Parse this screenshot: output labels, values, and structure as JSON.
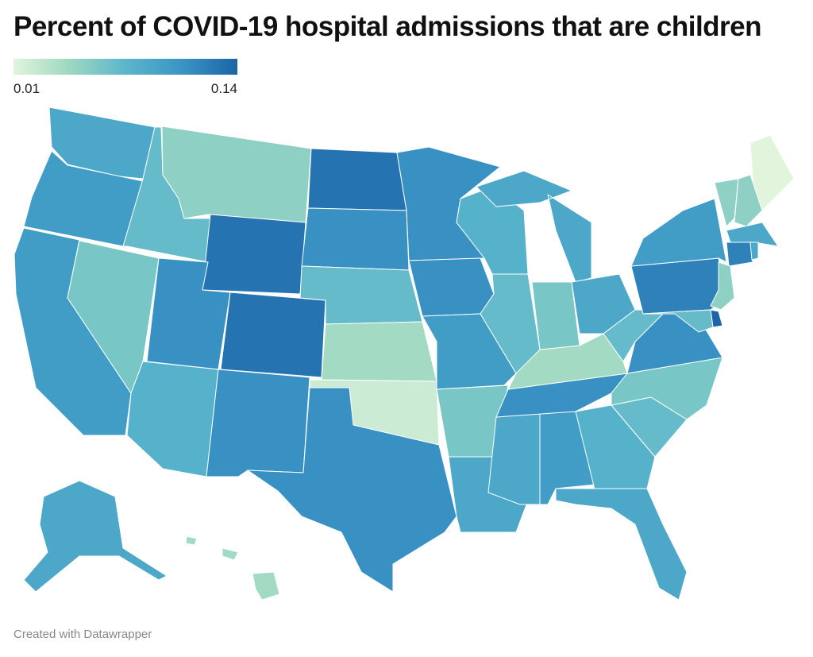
{
  "header": {
    "title": "Percent of COVID-19 hospital admissions that are children"
  },
  "legend": {
    "min_label": "0.01",
    "max_label": "0.14",
    "min_value": 0.01,
    "max_value": 0.14,
    "scale_colors": [
      "#e1f4dc",
      "#9dd8c2",
      "#5bb6cb",
      "#3a95c4",
      "#1d64a8"
    ]
  },
  "map_data": {
    "variable": "Percent of COVID-19 hospital admissions that are children",
    "states": [
      {
        "abbr": "WA",
        "value": 0.09
      },
      {
        "abbr": "OR",
        "value": 0.1
      },
      {
        "abbr": "CA",
        "value": 0.1
      },
      {
        "abbr": "NV",
        "value": 0.06
      },
      {
        "abbr": "ID",
        "value": 0.07
      },
      {
        "abbr": "MT",
        "value": 0.05
      },
      {
        "abbr": "WY",
        "value": 0.13
      },
      {
        "abbr": "UT",
        "value": 0.11
      },
      {
        "abbr": "AZ",
        "value": 0.08
      },
      {
        "abbr": "CO",
        "value": 0.13
      },
      {
        "abbr": "NM",
        "value": 0.11
      },
      {
        "abbr": "ND",
        "value": 0.13
      },
      {
        "abbr": "SD",
        "value": 0.11
      },
      {
        "abbr": "NE",
        "value": 0.07
      },
      {
        "abbr": "KS",
        "value": 0.04
      },
      {
        "abbr": "OK",
        "value": 0.02
      },
      {
        "abbr": "TX",
        "value": 0.11
      },
      {
        "abbr": "MN",
        "value": 0.11
      },
      {
        "abbr": "IA",
        "value": 0.11
      },
      {
        "abbr": "MO",
        "value": 0.1
      },
      {
        "abbr": "AR",
        "value": 0.06
      },
      {
        "abbr": "LA",
        "value": 0.09
      },
      {
        "abbr": "WI",
        "value": 0.08
      },
      {
        "abbr": "IL",
        "value": 0.07
      },
      {
        "abbr": "MS",
        "value": 0.09
      },
      {
        "abbr": "AL",
        "value": 0.1
      },
      {
        "abbr": "TN",
        "value": 0.11
      },
      {
        "abbr": "KY",
        "value": 0.04
      },
      {
        "abbr": "IN",
        "value": 0.06
      },
      {
        "abbr": "MI",
        "value": 0.09
      },
      {
        "abbr": "OH",
        "value": 0.09
      },
      {
        "abbr": "GA",
        "value": 0.08
      },
      {
        "abbr": "FL",
        "value": 0.09
      },
      {
        "abbr": "SC",
        "value": 0.07
      },
      {
        "abbr": "NC",
        "value": 0.06
      },
      {
        "abbr": "VA",
        "value": 0.11
      },
      {
        "abbr": "WV",
        "value": 0.07
      },
      {
        "abbr": "PA",
        "value": 0.12
      },
      {
        "abbr": "NY",
        "value": 0.1
      },
      {
        "abbr": "ME",
        "value": 0.01
      },
      {
        "abbr": "VT",
        "value": 0.05
      },
      {
        "abbr": "NH",
        "value": 0.05
      },
      {
        "abbr": "MA",
        "value": 0.09
      },
      {
        "abbr": "CT",
        "value": 0.12
      },
      {
        "abbr": "RI",
        "value": 0.09
      },
      {
        "abbr": "NJ",
        "value": 0.05
      },
      {
        "abbr": "DE",
        "value": 0.14
      },
      {
        "abbr": "MD",
        "value": 0.07
      },
      {
        "abbr": "AK",
        "value": 0.09
      },
      {
        "abbr": "HI",
        "value": 0.04
      }
    ]
  },
  "footer": {
    "credit": "Created with Datawrapper"
  }
}
